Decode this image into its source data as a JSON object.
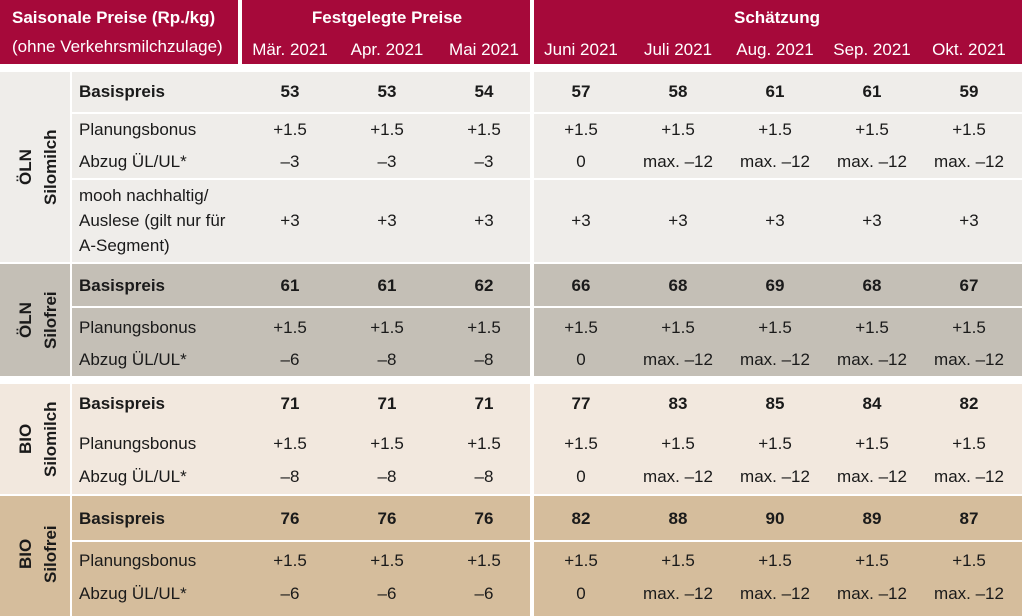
{
  "header": {
    "title": "Saisonale Preise (Rp./kg)",
    "subtitle": "(ohne Verkehrsmilchzulage)",
    "fixed_group": "Festgelegte Preise",
    "estimate_group": "Schätzung",
    "months": [
      "Mär. 2021",
      "Apr. 2021",
      "Mai 2021",
      "Juni 2021",
      "Juli 2021",
      "Aug. 2021",
      "Sep. 2021",
      "Okt. 2021"
    ]
  },
  "sections": [
    {
      "label_top": "ÖLN",
      "label_bottom": "Silomilch",
      "color": "#efedea",
      "rows": [
        {
          "label": "Basispreis",
          "bold": true,
          "values": [
            "53",
            "53",
            "54",
            "57",
            "58",
            "61",
            "61",
            "59"
          ]
        },
        {
          "label": "Planungsbonus",
          "bold": false,
          "values": [
            "+1.5",
            "+1.5",
            "+1.5",
            "+1.5",
            "+1.5",
            "+1.5",
            "+1.5",
            "+1.5"
          ]
        },
        {
          "label": "Abzug ÜL/UL*",
          "bold": false,
          "values": [
            "–3",
            "–3",
            "–3",
            "0",
            "max. –12",
            "max. –12",
            "max. –12",
            "max. –12"
          ]
        },
        {
          "label_lines": [
            "mooh nachhaltig/",
            "Auslese (gilt nur für",
            "A-Segment)"
          ],
          "bold": false,
          "values": [
            "+3",
            "+3",
            "+3",
            "+3",
            "+3",
            "+3",
            "+3",
            "+3"
          ]
        }
      ]
    },
    {
      "label_top": "ÖLN",
      "label_bottom": "Silofrei",
      "color": "#c4bfb6",
      "rows": [
        {
          "label": "Basispreis",
          "bold": true,
          "values": [
            "61",
            "61",
            "62",
            "66",
            "68",
            "69",
            "68",
            "67"
          ]
        },
        {
          "label": "Planungsbonus",
          "bold": false,
          "values": [
            "+1.5",
            "+1.5",
            "+1.5",
            "+1.5",
            "+1.5",
            "+1.5",
            "+1.5",
            "+1.5"
          ]
        },
        {
          "label": "Abzug ÜL/UL*",
          "bold": false,
          "values": [
            "–6",
            "–8",
            "–8",
            "0",
            "max. –12",
            "max. –12",
            "max. –12",
            "max. –12"
          ]
        }
      ]
    },
    {
      "label_top": "BIO",
      "label_bottom": "Silomilch",
      "color": "#f2e8de",
      "rows": [
        {
          "label": "Basispreis",
          "bold": true,
          "values": [
            "71",
            "71",
            "71",
            "77",
            "83",
            "85",
            "84",
            "82"
          ]
        },
        {
          "label": "Planungsbonus",
          "bold": false,
          "values": [
            "+1.5",
            "+1.5",
            "+1.5",
            "+1.5",
            "+1.5",
            "+1.5",
            "+1.5",
            "+1.5"
          ]
        },
        {
          "label": "Abzug ÜL/UL*",
          "bold": false,
          "values": [
            "–8",
            "–8",
            "–8",
            "0",
            "max. –12",
            "max. –12",
            "max. –12",
            "max. –12"
          ]
        }
      ]
    },
    {
      "label_top": "BIO",
      "label_bottom": "Silofrei",
      "color": "#d5bd9c",
      "rows": [
        {
          "label": "Basispreis",
          "bold": true,
          "values": [
            "76",
            "76",
            "76",
            "82",
            "88",
            "90",
            "89",
            "87"
          ]
        },
        {
          "label": "Planungsbonus",
          "bold": false,
          "values": [
            "+1.5",
            "+1.5",
            "+1.5",
            "+1.5",
            "+1.5",
            "+1.5",
            "+1.5",
            "+1.5"
          ]
        },
        {
          "label": "Abzug ÜL/UL*",
          "bold": false,
          "values": [
            "–6",
            "–6",
            "–6",
            "0",
            "max. –12",
            "max. –12",
            "max. –12",
            "max. –12"
          ]
        }
      ]
    }
  ],
  "colors": {
    "header": "#a6093a"
  }
}
